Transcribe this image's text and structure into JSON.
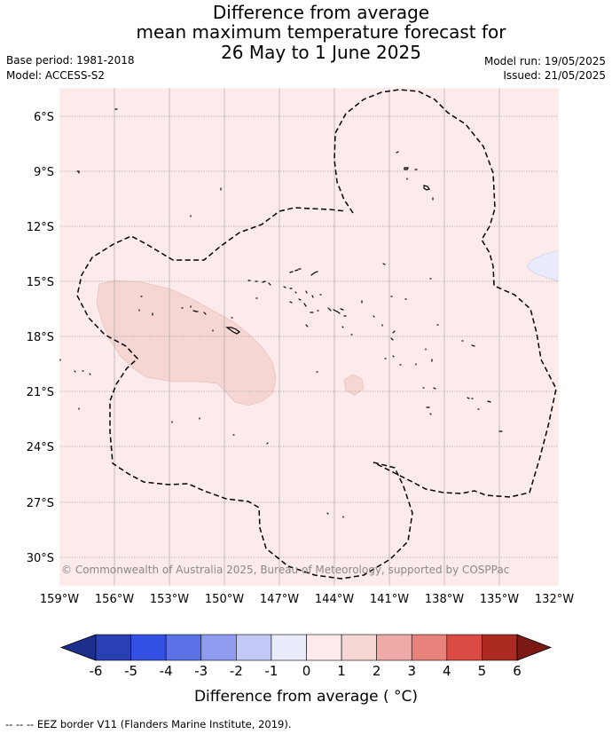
{
  "title": {
    "line1": "Difference from average",
    "line2": "mean maximum temperature forecast for",
    "line3": "26 May to 1 June 2025"
  },
  "meta": {
    "base_period": "Base period: 1981-2018",
    "model": "Model: ACCESS-S2",
    "model_run": "Model run: 19/05/2025",
    "issued": "Issued: 21/05/2025"
  },
  "map": {
    "lat_labels": [
      "6°S",
      "9°S",
      "12°S",
      "15°S",
      "18°S",
      "21°S",
      "24°S",
      "27°S",
      "30°S"
    ],
    "lon_labels": [
      "159°W",
      "156°W",
      "153°W",
      "150°W",
      "147°W",
      "144°W",
      "141°W",
      "138°W",
      "135°W",
      "132°W"
    ],
    "copyright": "© Commonwealth of Australia 2025, Bureau of Meteorology, supported by COSPPac",
    "colors": {
      "background_anomaly": "#fcebea",
      "warm_anomaly": "#f5d6d3",
      "cool_anomaly": "#e9ebfa",
      "grid": "#a8a8a8",
      "eez_border": "#000000",
      "coast": "#000000"
    }
  },
  "colorbar": {
    "tick_labels": [
      "-6",
      "-5",
      "-4",
      "-3",
      "-2",
      "-1",
      "0",
      "1",
      "2",
      "3",
      "4",
      "5",
      "6"
    ],
    "colors": [
      "#1e2e8c",
      "#2b3fb4",
      "#3450e3",
      "#5b72e6",
      "#8e9cf0",
      "#c3c9f6",
      "#e9ebfa",
      "#fcebea",
      "#f5d6d3",
      "#eeaaa6",
      "#e8837b",
      "#d94b43",
      "#ad2a22",
      "#7b1a14"
    ],
    "label": "Difference from average ( °C)"
  },
  "footer": {
    "legend_line": "-- -- -- EEZ border V11 (Flanders Marine Institute, 2019)."
  }
}
